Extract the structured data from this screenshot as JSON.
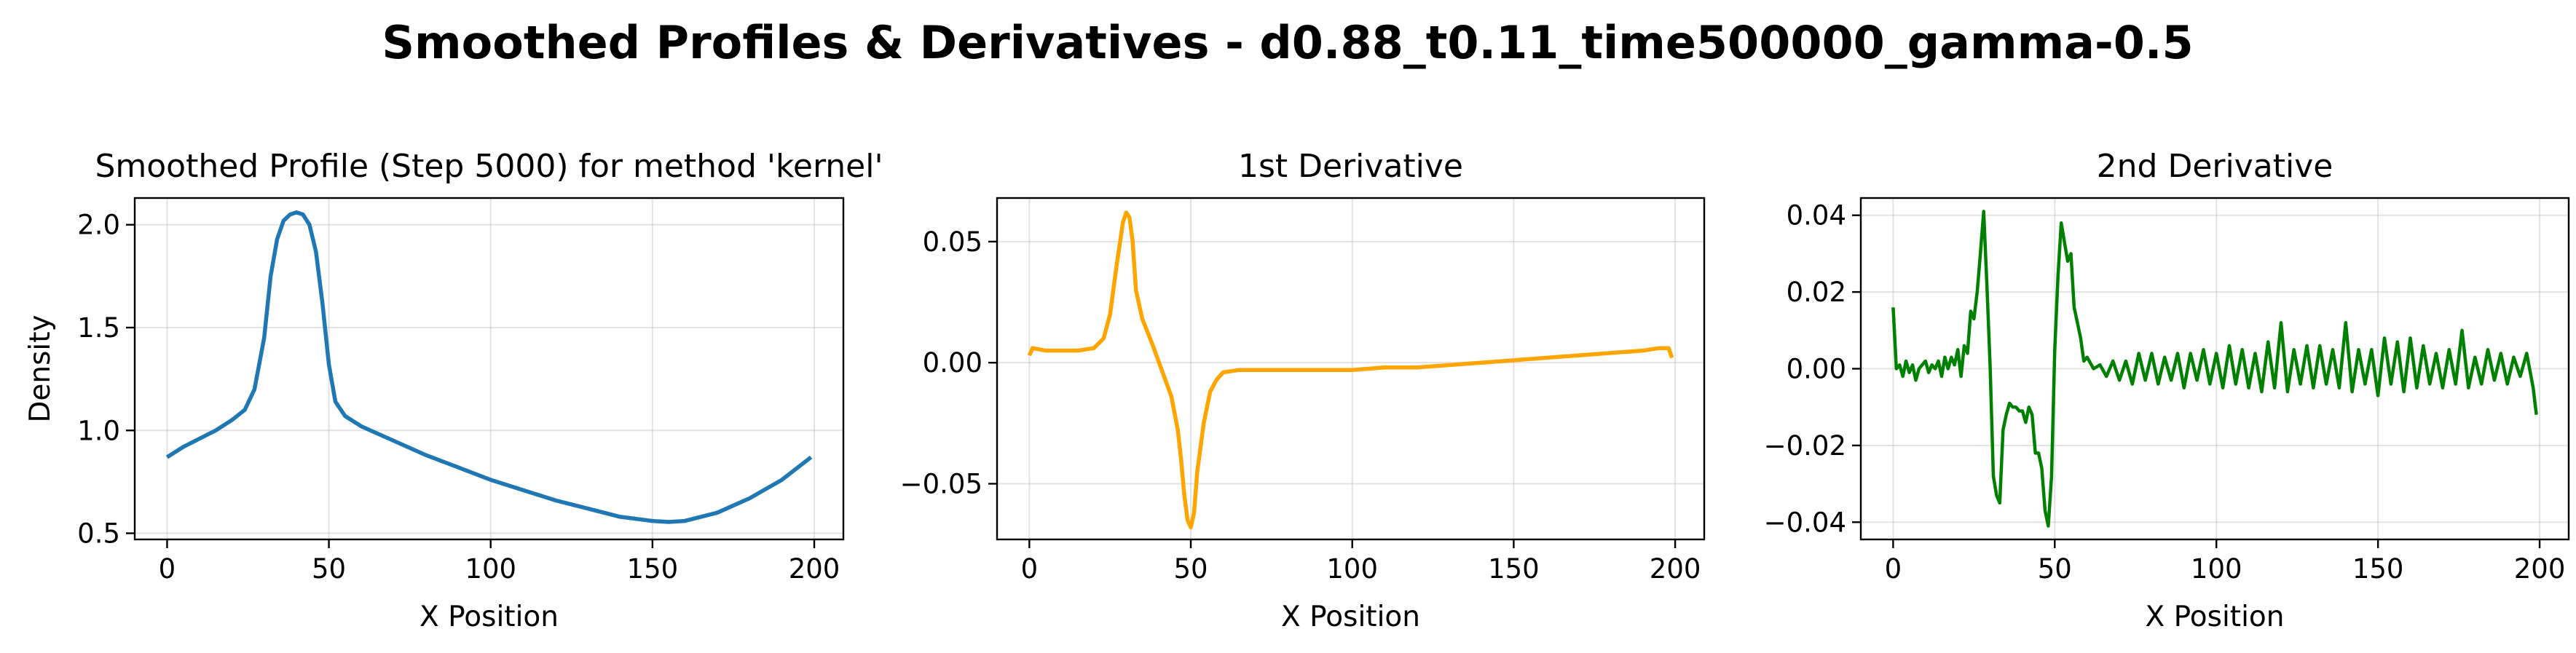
{
  "figure": {
    "suptitle": "Smoothed Profiles & Derivatives - d0.88_t0.11_time500000_gamma-0.5"
  },
  "chart_data": [
    {
      "type": "line",
      "title": "Smoothed Profile (Step 5000) for method 'kernel'",
      "xlabel": "X Position",
      "ylabel": "Density",
      "xlim": [
        -10,
        209
      ],
      "ylim": [
        0.47,
        2.13
      ],
      "xticks": [
        0,
        50,
        100,
        150,
        200
      ],
      "xtick_labels": [
        "0",
        "50",
        "100",
        "150",
        "200"
      ],
      "yticks": [
        0.5,
        1.0,
        1.5,
        2.0
      ],
      "ytick_labels": [
        "0.5",
        "1.0",
        "1.5",
        "2.0"
      ],
      "grid": true,
      "color": "#1f77b4",
      "x": [
        0,
        5,
        10,
        15,
        20,
        24,
        27,
        30,
        32,
        34,
        36,
        38,
        40,
        42,
        44,
        46,
        48,
        50,
        52,
        55,
        60,
        70,
        80,
        90,
        100,
        110,
        120,
        130,
        140,
        150,
        155,
        160,
        170,
        180,
        190,
        199
      ],
      "values": [
        0.87,
        0.92,
        0.96,
        1.0,
        1.05,
        1.1,
        1.2,
        1.45,
        1.75,
        1.93,
        2.02,
        2.05,
        2.06,
        2.05,
        2.0,
        1.87,
        1.62,
        1.32,
        1.14,
        1.07,
        1.02,
        0.95,
        0.88,
        0.82,
        0.76,
        0.71,
        0.66,
        0.62,
        0.58,
        0.56,
        0.555,
        0.56,
        0.6,
        0.67,
        0.76,
        0.87
      ]
    },
    {
      "type": "line",
      "title": "1st Derivative",
      "xlabel": "X Position",
      "ylabel": "",
      "xlim": [
        -10,
        209
      ],
      "ylim": [
        -0.073,
        0.068
      ],
      "xticks": [
        0,
        50,
        100,
        150,
        200
      ],
      "xtick_labels": [
        "0",
        "50",
        "100",
        "150",
        "200"
      ],
      "yticks": [
        -0.05,
        0.0,
        0.05
      ],
      "ytick_labels": [
        "−0.05",
        "0.00",
        "0.05"
      ],
      "grid": true,
      "color": "#ffa500",
      "x": [
        0,
        1,
        5,
        10,
        15,
        20,
        23,
        25,
        27,
        29,
        30,
        31,
        32,
        33,
        35,
        38,
        41,
        44,
        46,
        47,
        48,
        49,
        50,
        51,
        52,
        54,
        56,
        58,
        60,
        65,
        70,
        80,
        90,
        100,
        110,
        120,
        130,
        140,
        150,
        160,
        170,
        180,
        190,
        195,
        198,
        199
      ],
      "values": [
        0.003,
        0.006,
        0.005,
        0.005,
        0.005,
        0.006,
        0.01,
        0.02,
        0.04,
        0.058,
        0.062,
        0.06,
        0.05,
        0.03,
        0.018,
        0.008,
        -0.003,
        -0.014,
        -0.028,
        -0.04,
        -0.055,
        -0.065,
        -0.068,
        -0.062,
        -0.045,
        -0.025,
        -0.012,
        -0.007,
        -0.004,
        -0.003,
        -0.003,
        -0.003,
        -0.003,
        -0.003,
        -0.002,
        -0.002,
        -0.001,
        0.0,
        0.001,
        0.002,
        0.003,
        0.004,
        0.005,
        0.006,
        0.006,
        0.002
      ]
    },
    {
      "type": "line",
      "title": "2nd Derivative",
      "xlabel": "X Position",
      "ylabel": "",
      "xlim": [
        -10,
        209
      ],
      "ylim": [
        -0.0445,
        0.0445
      ],
      "xticks": [
        0,
        50,
        100,
        150,
        200
      ],
      "xtick_labels": [
        "0",
        "50",
        "100",
        "150",
        "200"
      ],
      "yticks": [
        -0.04,
        -0.02,
        0.0,
        0.02,
        0.04
      ],
      "ytick_labels": [
        "−0.04",
        "−0.02",
        "0.00",
        "0.02",
        "0.04"
      ],
      "grid": true,
      "color": "#008000",
      "x": [
        0,
        1,
        2,
        3,
        4,
        5,
        6,
        7,
        8,
        9,
        10,
        11,
        12,
        13,
        14,
        15,
        16,
        17,
        18,
        19,
        20,
        21,
        22,
        23,
        24,
        25,
        26,
        27,
        28,
        29,
        30,
        31,
        32,
        33,
        34,
        35,
        36,
        37,
        38,
        39,
        40,
        41,
        42,
        43,
        44,
        45,
        46,
        47,
        48,
        49,
        50,
        51,
        52,
        53,
        54,
        55,
        56,
        57,
        58,
        59,
        60,
        62,
        64,
        66,
        68,
        70,
        72,
        74,
        76,
        78,
        80,
        82,
        84,
        86,
        88,
        90,
        92,
        94,
        96,
        98,
        100,
        102,
        104,
        106,
        108,
        110,
        112,
        114,
        116,
        118,
        120,
        122,
        124,
        126,
        128,
        130,
        132,
        134,
        136,
        138,
        140,
        142,
        144,
        146,
        148,
        150,
        152,
        154,
        156,
        158,
        160,
        162,
        164,
        166,
        168,
        170,
        172,
        174,
        176,
        178,
        180,
        182,
        184,
        186,
        188,
        190,
        192,
        194,
        196,
        198,
        199
      ],
      "values": [
        0.016,
        0.0,
        0.001,
        -0.002,
        0.002,
        -0.001,
        0.001,
        -0.003,
        0.0,
        0.001,
        0.002,
        -0.001,
        0.001,
        0.0,
        0.002,
        -0.002,
        0.003,
        0.0,
        0.003,
        0.001,
        0.005,
        -0.002,
        0.006,
        0.004,
        0.015,
        0.013,
        0.02,
        0.03,
        0.041,
        0.022,
        0.001,
        -0.028,
        -0.033,
        -0.035,
        -0.016,
        -0.012,
        -0.009,
        -0.01,
        -0.01,
        -0.011,
        -0.011,
        -0.014,
        -0.01,
        -0.012,
        -0.022,
        -0.022,
        -0.026,
        -0.037,
        -0.041,
        -0.028,
        0.005,
        0.024,
        0.038,
        0.033,
        0.028,
        0.03,
        0.016,
        0.012,
        0.008,
        0.002,
        0.003,
        0.0,
        0.001,
        -0.002,
        0.002,
        -0.003,
        0.002,
        -0.004,
        0.004,
        -0.003,
        0.004,
        -0.004,
        0.003,
        -0.003,
        0.004,
        -0.005,
        0.004,
        -0.003,
        0.005,
        -0.004,
        0.004,
        -0.005,
        0.006,
        -0.004,
        0.005,
        -0.005,
        0.004,
        -0.006,
        0.007,
        -0.005,
        0.012,
        -0.006,
        0.005,
        -0.004,
        0.006,
        -0.005,
        0.006,
        -0.004,
        0.005,
        -0.005,
        0.012,
        -0.006,
        0.005,
        -0.004,
        0.005,
        -0.007,
        0.008,
        -0.004,
        0.007,
        -0.006,
        0.008,
        -0.005,
        0.006,
        -0.004,
        0.004,
        -0.005,
        0.005,
        -0.004,
        0.01,
        -0.005,
        0.003,
        -0.004,
        0.005,
        -0.003,
        0.004,
        -0.004,
        0.003,
        -0.002,
        0.004,
        -0.005,
        -0.012
      ]
    }
  ]
}
